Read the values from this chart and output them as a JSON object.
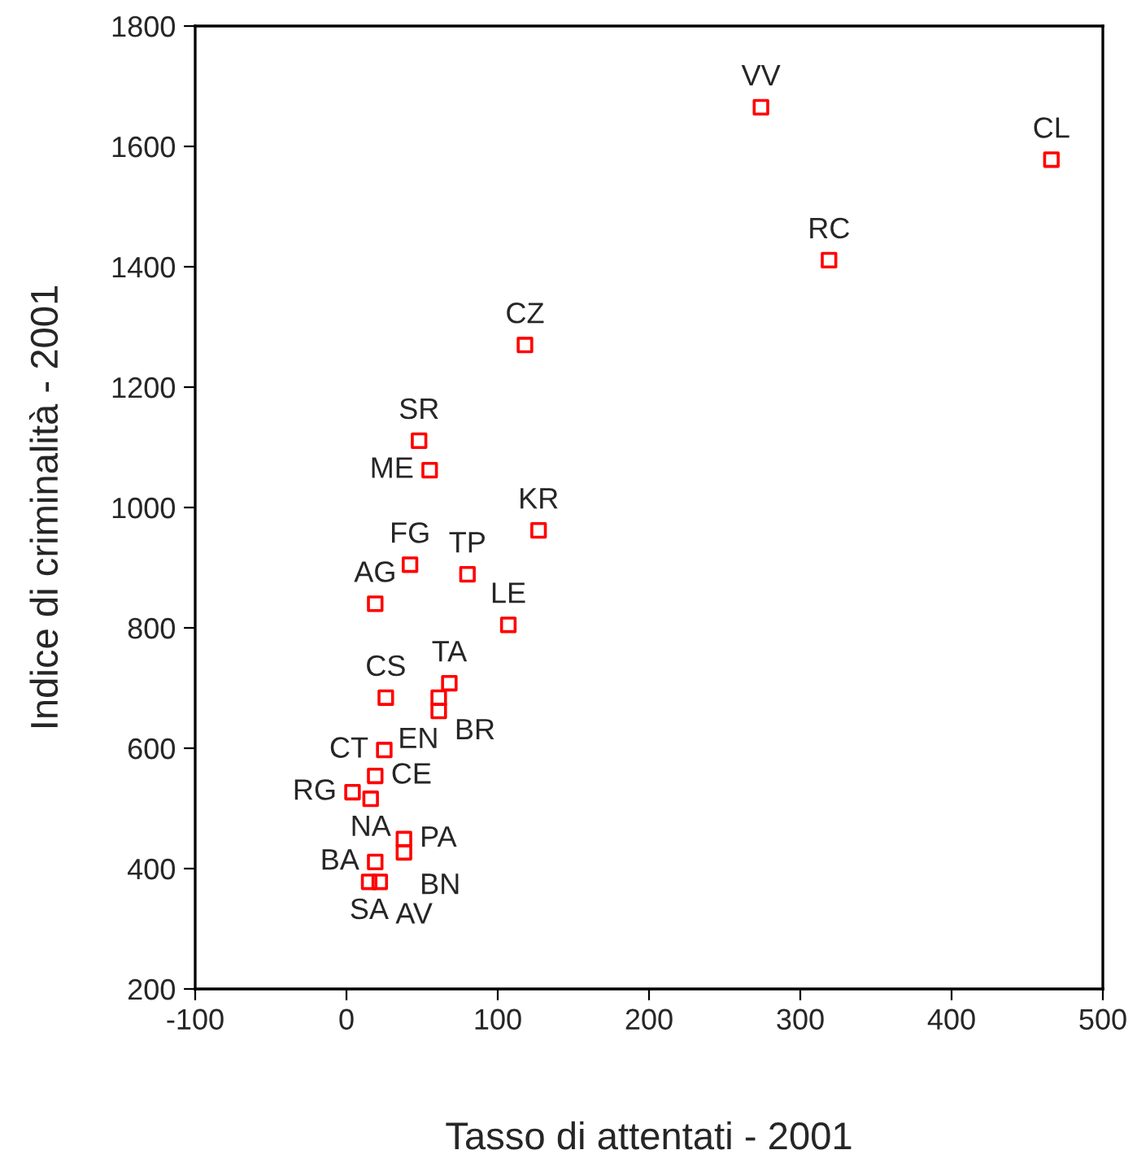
{
  "chart_data": {
    "type": "scatter",
    "xlabel": "Tasso di attentati - 2001",
    "ylabel": "Indice di criminalità - 2001",
    "xlim": [
      -100,
      500
    ],
    "xticks": [
      -100,
      0,
      100,
      200,
      300,
      400,
      500
    ],
    "ylim": [
      200,
      1800
    ],
    "yticks": [
      200,
      400,
      600,
      800,
      1000,
      1200,
      1400,
      1600,
      1800
    ],
    "grid": false,
    "marker": "square",
    "series": [
      {
        "color": "#ff0000",
        "x": [
          274,
          466,
          319,
          118,
          48,
          55,
          127,
          42,
          80,
          19,
          107,
          26,
          68,
          61,
          61,
          25,
          19,
          4,
          16,
          38,
          38,
          19,
          15,
          22
        ],
        "values": [
          1665,
          1578,
          1411,
          1270,
          1111,
          1062,
          962,
          905,
          889,
          840,
          805,
          684,
          708,
          684,
          662,
          597,
          554,
          527,
          516,
          449,
          427,
          411,
          378,
          378
        ],
        "value_labels": [
          "VV",
          "CL",
          "RC",
          "CZ",
          "SR",
          "ME",
          "KR",
          "FG",
          "TP",
          "AG",
          "LE",
          "CS",
          "TA",
          "BR",
          "EN",
          "CT",
          "CE",
          "RG",
          "NA",
          "PA",
          "BN",
          "BA",
          "SA",
          "AV"
        ]
      }
    ]
  }
}
